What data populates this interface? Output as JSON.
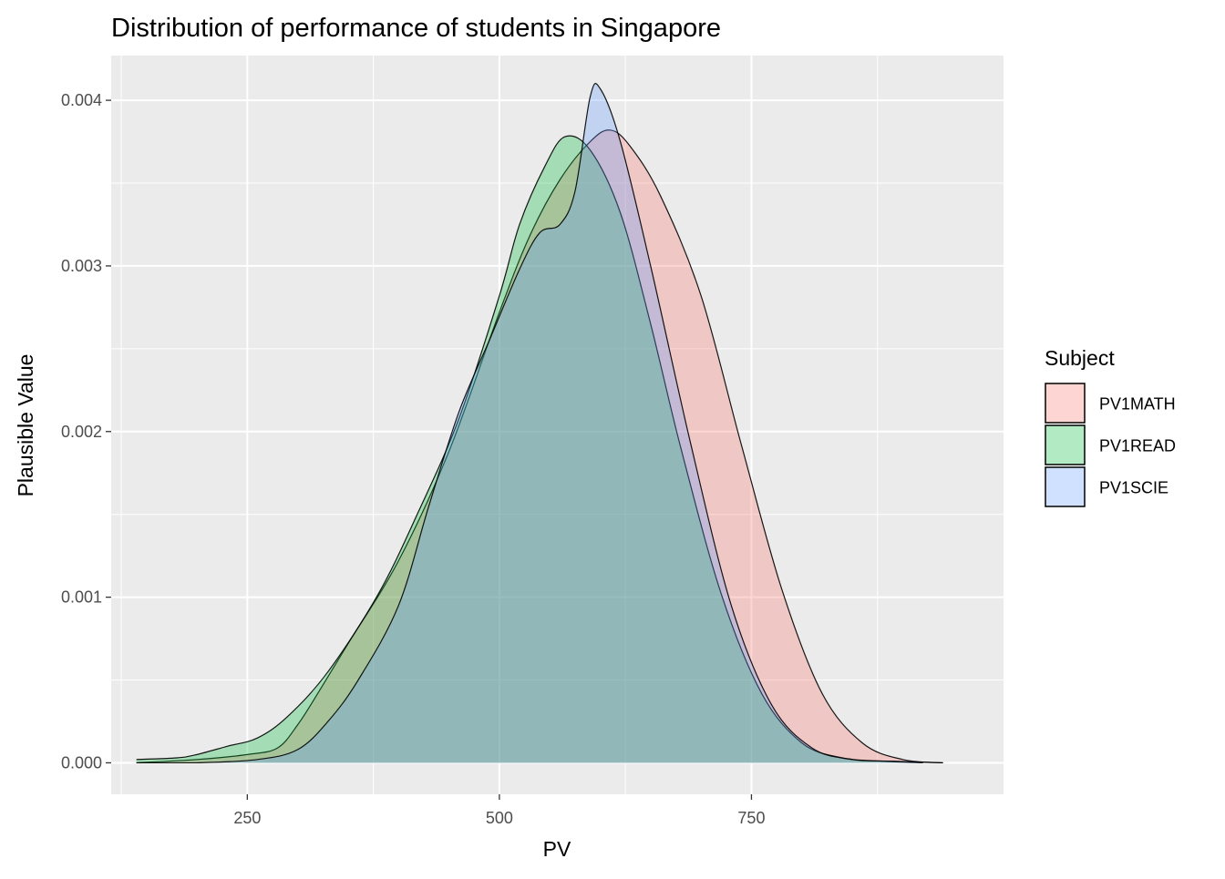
{
  "chart_data": {
    "type": "area",
    "title": "Distribution of performance of students in Singapore",
    "xlabel": "PV",
    "ylabel": "Plausible Value",
    "xlim": [
      115,
      1000
    ],
    "ylim": [
      -0.00019,
      0.00427
    ],
    "x_ticks": [
      250,
      500,
      750
    ],
    "x_tick_labels": [
      "250",
      "500",
      "750"
    ],
    "y_ticks": [
      0,
      0.001,
      0.002,
      0.003,
      0.004
    ],
    "y_tick_labels": [
      "0.000",
      "0.001",
      "0.002",
      "0.003",
      "0.004"
    ],
    "grid": true,
    "legend": {
      "title": "Subject",
      "position": "right",
      "entries": [
        "PV1MATH",
        "PV1READ",
        "PV1SCIE"
      ]
    },
    "series": [
      {
        "name": "PV1MATH",
        "color": "#F8766D",
        "x": [
          140,
          200,
          250,
          280,
          300,
          320,
          350,
          400,
          450,
          500,
          530,
          560,
          590,
          610,
          630,
          660,
          700,
          740,
          780,
          820,
          860,
          900,
          940
        ],
        "y": [
          0.0,
          2e-05,
          5e-05,
          9e-05,
          0.00023,
          0.00042,
          0.00072,
          0.00122,
          0.00188,
          0.00272,
          0.00318,
          0.00352,
          0.00375,
          0.00382,
          0.00372,
          0.00342,
          0.00282,
          0.00192,
          0.00105,
          0.00042,
          0.00012,
          2e-05,
          0.0
        ]
      },
      {
        "name": "PV1READ",
        "color": "#00BA38",
        "x": [
          140,
          180,
          200,
          230,
          260,
          290,
          330,
          380,
          420,
          460,
          500,
          520,
          545,
          565,
          590,
          620,
          650,
          680,
          720,
          760,
          800,
          840,
          880,
          920
        ],
        "y": [
          2e-05,
          3e-05,
          5e-05,
          0.0001,
          0.00015,
          0.00028,
          0.00055,
          0.00102,
          0.00152,
          0.00208,
          0.00282,
          0.00325,
          0.0036,
          0.00378,
          0.0037,
          0.00332,
          0.00265,
          0.0019,
          0.00102,
          0.00042,
          0.00012,
          3e-05,
          1e-05,
          0.0
        ]
      },
      {
        "name": "PV1SCIE",
        "color": "#619CFF",
        "x": [
          140,
          200,
          260,
          300,
          330,
          360,
          400,
          430,
          460,
          490,
          520,
          540,
          560,
          575,
          590,
          600,
          620,
          650,
          690,
          730,
          770,
          810,
          850,
          890,
          940
        ],
        "y": [
          0.0,
          0.0,
          2e-05,
          8e-05,
          0.00025,
          0.0005,
          0.00095,
          0.00155,
          0.00212,
          0.00255,
          0.00298,
          0.0032,
          0.00325,
          0.00345,
          0.00402,
          0.00407,
          0.00375,
          0.003,
          0.00192,
          0.00095,
          0.00035,
          9e-05,
          2e-05,
          1e-05,
          0.0
        ]
      }
    ]
  }
}
